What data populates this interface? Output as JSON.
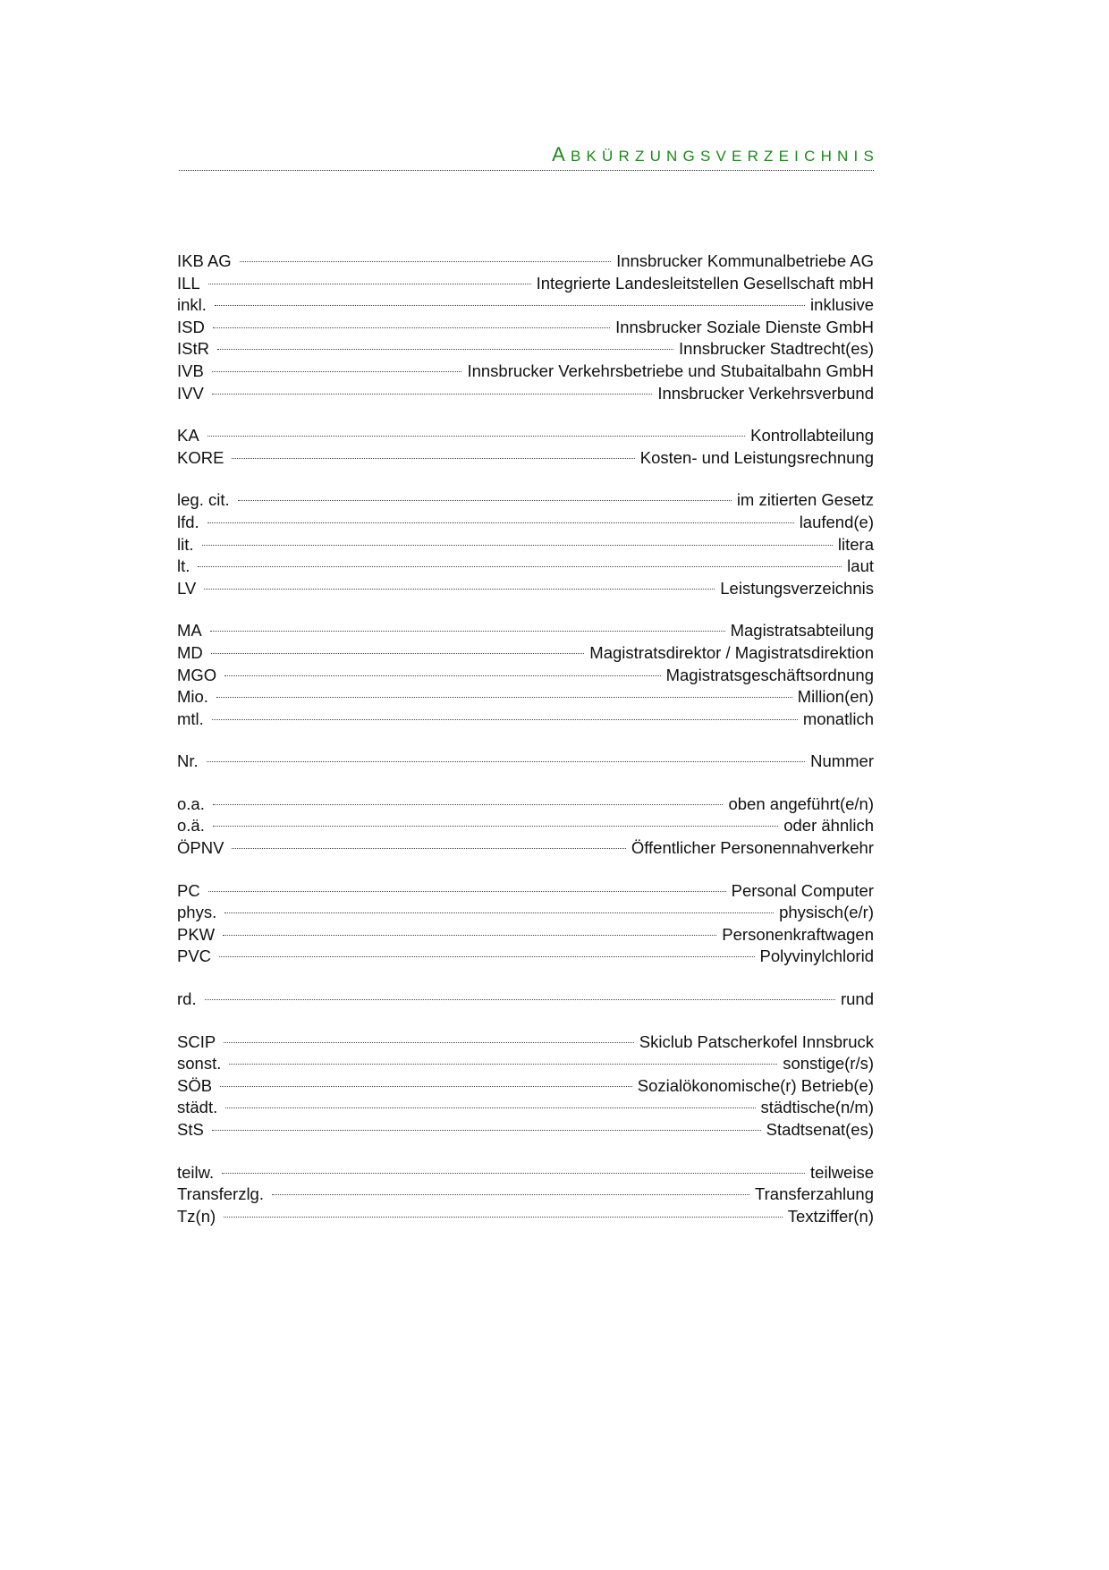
{
  "header": {
    "title_first": "A",
    "title_rest": "BKÜRZUNGSVERZEICHNIS",
    "accent_color": "#1a8a1a"
  },
  "groups": [
    [
      [
        "IKB AG",
        "Innsbrucker Kommunalbetriebe AG"
      ],
      [
        "ILL",
        "Integrierte Landesleitstellen Gesellschaft mbH"
      ],
      [
        "inkl.",
        "inklusive"
      ],
      [
        "ISD",
        "Innsbrucker Soziale Dienste GmbH"
      ],
      [
        "IStR",
        "Innsbrucker Stadtrecht(es)"
      ],
      [
        "IVB",
        "Innsbrucker Verkehrsbetriebe und Stubaitalbahn GmbH"
      ],
      [
        "IVV",
        "Innsbrucker Verkehrsverbund"
      ]
    ],
    [
      [
        "KA",
        "Kontrollabteilung"
      ],
      [
        "KORE",
        "Kosten- und Leistungsrechnung"
      ]
    ],
    [
      [
        "leg. cit.",
        "im zitierten Gesetz"
      ],
      [
        "lfd.",
        "laufend(e)"
      ],
      [
        "lit.",
        "litera"
      ],
      [
        "lt.",
        "laut"
      ],
      [
        "LV",
        "Leistungsverzeichnis"
      ]
    ],
    [
      [
        "MA",
        "Magistratsabteilung"
      ],
      [
        "MD",
        "Magistratsdirektor / Magistratsdirektion"
      ],
      [
        "MGO",
        "Magistratsgeschäftsordnung"
      ],
      [
        "Mio.",
        "Million(en)"
      ],
      [
        "mtl.",
        "monatlich"
      ]
    ],
    [
      [
        "Nr.",
        "Nummer"
      ]
    ],
    [
      [
        "o.a.",
        "oben angeführt(e/n)"
      ],
      [
        "o.ä.",
        "oder ähnlich"
      ],
      [
        "ÖPNV",
        "Öffentlicher Personennahverkehr"
      ]
    ],
    [
      [
        "PC",
        "Personal Computer"
      ],
      [
        "phys.",
        "physisch(e/r)"
      ],
      [
        "PKW",
        "Personenkraftwagen"
      ],
      [
        "PVC",
        "Polyvinylchlorid"
      ]
    ],
    [
      [
        "rd.",
        "rund"
      ]
    ],
    [
      [
        "SCIP",
        "Skiclub Patscherkofel Innsbruck"
      ],
      [
        "sonst.",
        "sonstige(r/s)"
      ],
      [
        "SÖB",
        "Sozialökonomische(r) Betrieb(e)"
      ],
      [
        "städt.",
        "städtische(n/m)"
      ],
      [
        "StS",
        "Stadtsenat(es)"
      ]
    ],
    [
      [
        "teilw.",
        "teilweise"
      ],
      [
        "Transferzlg.",
        "Transferzahlung"
      ],
      [
        "Tz(n)",
        "Textziffer(n)"
      ]
    ]
  ]
}
